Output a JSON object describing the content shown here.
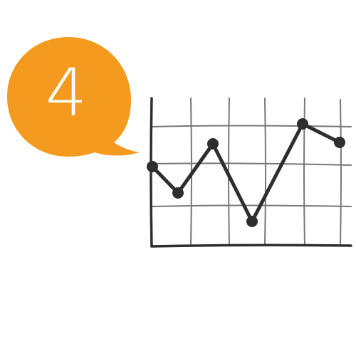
{
  "badge": {
    "number": "4",
    "color": "#f49a1e"
  },
  "chart_icon": {
    "ink_color": "#2e2e2e",
    "grid_color": "#777777",
    "trend_values": [
      3,
      2,
      4,
      1,
      5,
      4
    ]
  }
}
